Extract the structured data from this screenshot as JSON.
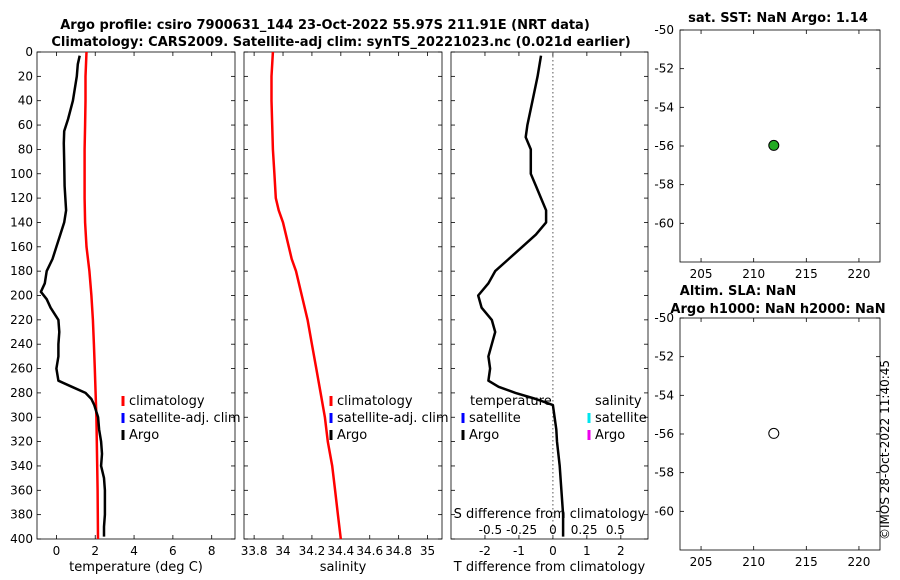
{
  "header": {
    "title_line1": "Argo profile: csiro 7900631_144 23-Oct-2022 55.97S 211.91E (NRT data)",
    "title_line2": "Climatology: CARS2009. Satellite-adj clim: synTS_20221023.nc (0.021d earlier)"
  },
  "watermark": "©IMOS 28-Oct-2022 11:40:45",
  "colors": {
    "climatology": "#ff0000",
    "satellite_adj": "#0000ff",
    "argo": "#000000",
    "salinity_satellite": "#00e5ee",
    "salinity_argo": "#ee00ee",
    "sst_marker": "#22aa22"
  },
  "chart_data": [
    {
      "type": "line",
      "id": "temperature",
      "xlabel": "temperature (deg C)",
      "ylabel": "",
      "xlim": [
        -1,
        9.2
      ],
      "ylim": [
        400,
        0
      ],
      "x_ticks": [
        0,
        2,
        4,
        6,
        8
      ],
      "x_tick_labels": [
        "0",
        "2",
        "4",
        "6",
        "8"
      ],
      "y_ticks": [
        0,
        20,
        40,
        60,
        80,
        100,
        120,
        140,
        160,
        180,
        200,
        220,
        240,
        260,
        280,
        300,
        320,
        340,
        360,
        380,
        400
      ],
      "y_tick_labels": [
        "0",
        "20",
        "40",
        "60",
        "80",
        "100",
        "120",
        "140",
        "160",
        "180",
        "200",
        "220",
        "240",
        "260",
        "280",
        "300",
        "320",
        "340",
        "360",
        "380",
        "400"
      ],
      "legend": [
        "climatology",
        "satellite-adj. clim",
        "Argo"
      ],
      "series": [
        {
          "name": "climatology",
          "color": "#ff0000",
          "depth": [
            0,
            20,
            40,
            60,
            80,
            100,
            120,
            140,
            160,
            180,
            200,
            220,
            240,
            260,
            280,
            300,
            320,
            340,
            360,
            380,
            400
          ],
          "values": [
            1.55,
            1.5,
            1.5,
            1.48,
            1.45,
            1.45,
            1.45,
            1.48,
            1.55,
            1.7,
            1.8,
            1.88,
            1.93,
            1.98,
            2.02,
            2.06,
            2.08,
            2.1,
            2.12,
            2.13,
            2.14
          ]
        },
        {
          "name": "Argo",
          "color": "#000000",
          "depth": [
            3,
            10,
            20,
            40,
            55,
            65,
            75,
            90,
            110,
            130,
            140,
            150,
            160,
            170,
            180,
            190,
            197,
            203,
            210,
            220,
            230,
            240,
            250,
            260,
            270,
            275,
            280,
            285,
            290,
            295,
            300,
            310,
            320,
            330,
            340,
            350,
            360,
            370,
            380,
            390,
            398
          ],
          "values": [
            1.2,
            1.1,
            1.05,
            0.85,
            0.6,
            0.4,
            0.38,
            0.4,
            0.42,
            0.5,
            0.4,
            0.2,
            0.0,
            -0.2,
            -0.5,
            -0.6,
            -0.8,
            -0.5,
            -0.3,
            0.1,
            0.15,
            0.1,
            0.1,
            0.0,
            0.1,
            0.8,
            1.5,
            1.8,
            1.95,
            2.05,
            2.15,
            2.2,
            2.3,
            2.35,
            2.3,
            2.45,
            2.5,
            2.5,
            2.5,
            2.45,
            2.45
          ]
        }
      ]
    },
    {
      "type": "line",
      "id": "salinity",
      "xlabel": "salinity",
      "ylabel": "",
      "xlim": [
        33.73,
        35.1
      ],
      "ylim": [
        400,
        0
      ],
      "x_ticks": [
        33.8,
        34.0,
        34.2,
        34.4,
        34.6,
        34.8,
        35.0
      ],
      "x_tick_labels": [
        "33.8",
        "34",
        "34.2",
        "34.4",
        "34.6",
        "34.8",
        "35"
      ],
      "legend": [
        "climatology",
        "satellite-adj. clim",
        "Argo"
      ],
      "series": [
        {
          "name": "climatology",
          "color": "#ff0000",
          "depth": [
            0,
            20,
            40,
            60,
            80,
            100,
            120,
            130,
            140,
            150,
            160,
            170,
            180,
            190,
            200,
            220,
            240,
            260,
            280,
            300,
            320,
            340,
            360,
            380,
            400
          ],
          "values": [
            33.93,
            33.92,
            33.92,
            33.925,
            33.93,
            33.94,
            33.95,
            33.97,
            34.0,
            34.02,
            34.04,
            34.06,
            34.09,
            34.11,
            34.13,
            34.17,
            34.2,
            34.23,
            34.26,
            34.29,
            34.31,
            34.34,
            34.36,
            34.38,
            34.4
          ]
        }
      ]
    },
    {
      "type": "line",
      "id": "difference",
      "xlabel": "T difference from climatology",
      "x2label": "S difference from climatology",
      "xlim": [
        -3,
        2.8
      ],
      "ylim": [
        400,
        0
      ],
      "x_ticks": [
        -2,
        -1,
        0,
        1,
        2
      ],
      "x_tick_labels": [
        "-2",
        "-1",
        "0",
        "1",
        "2"
      ],
      "x2_ticks": [
        -0.5,
        -0.25,
        0,
        0.25,
        0.5
      ],
      "x2_tick_labels": [
        "-0.5",
        "-0.25",
        "0",
        "0.25",
        "0.5"
      ],
      "legend_left": {
        "title": "temperature",
        "items": [
          "satellite",
          "Argo"
        ]
      },
      "legend_right": {
        "title": "salinity",
        "items": [
          "satellite",
          "Argo"
        ]
      },
      "series": [
        {
          "name": "temperature Argo",
          "color": "#000000",
          "depth": [
            3,
            20,
            40,
            60,
            70,
            80,
            100,
            110,
            120,
            130,
            140,
            150,
            160,
            170,
            180,
            190,
            200,
            210,
            220,
            230,
            240,
            250,
            260,
            270,
            275,
            280,
            285,
            290,
            300,
            310,
            320,
            340,
            360,
            380,
            398
          ],
          "values": [
            -0.35,
            -0.45,
            -0.6,
            -0.75,
            -0.8,
            -0.65,
            -0.65,
            -0.5,
            -0.35,
            -0.2,
            -0.2,
            -0.5,
            -0.9,
            -1.3,
            -1.7,
            -1.9,
            -2.2,
            -2.1,
            -1.8,
            -1.7,
            -1.8,
            -1.9,
            -1.85,
            -1.9,
            -1.6,
            -1.1,
            -0.5,
            0.0,
            0.05,
            0.1,
            0.12,
            0.2,
            0.25,
            0.3,
            0.3
          ]
        }
      ]
    },
    {
      "type": "scatter",
      "id": "sst_map",
      "title": "sat. SST: NaN Argo: 1.14",
      "xlim": [
        203,
        222
      ],
      "ylim": [
        -62,
        -50
      ],
      "x_ticks": [
        205,
        210,
        215,
        220
      ],
      "x_tick_labels": [
        "205",
        "210",
        "215",
        "220"
      ],
      "y_ticks": [
        -50,
        -52,
        -54,
        -56,
        -58,
        -60
      ],
      "y_tick_labels": [
        "-50",
        "-52",
        "-54",
        "-56",
        "-58",
        "-60"
      ],
      "points": [
        {
          "x": 211.91,
          "y": -55.97,
          "color": "#22aa22"
        }
      ]
    },
    {
      "type": "scatter",
      "id": "sla_map",
      "title_line1": "Altim. SLA: NaN",
      "title_line2": "Argo h1000: NaN h2000: NaN",
      "xlim": [
        203,
        222
      ],
      "ylim": [
        -62,
        -50
      ],
      "x_ticks": [
        205,
        210,
        215,
        220
      ],
      "x_tick_labels": [
        "205",
        "210",
        "215",
        "220"
      ],
      "y_ticks": [
        -50,
        -52,
        -54,
        -56,
        -58,
        -60
      ],
      "y_tick_labels": [
        "-50",
        "-52",
        "-54",
        "-56",
        "-58",
        "-60"
      ],
      "points": [
        {
          "x": 211.91,
          "y": -55.97,
          "color": "#ffffff"
        }
      ]
    }
  ]
}
